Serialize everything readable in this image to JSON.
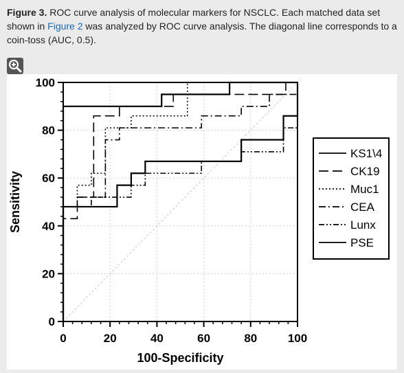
{
  "caption": {
    "label": "Figure 3.",
    "text_1": " ROC curve analysis of molecular markers for NSCLC. Each matched data set shown in ",
    "link": "Figure 2",
    "text_2": " was analyzed by ROC curve analysis. The diagonal line corresponds to a coin-toss (AUC, 0.5)."
  },
  "zoom_icon": "zoom-in-icon",
  "chart_data": {
    "type": "line",
    "title": "",
    "xlabel": "100-Specificity",
    "ylabel": "Sensitivity",
    "xlim": [
      0,
      100
    ],
    "ylim": [
      0,
      100
    ],
    "xticks": [
      "0",
      "20",
      "40",
      "60",
      "80",
      "100"
    ],
    "yticks": [
      "0",
      "20",
      "40",
      "60",
      "80",
      "100"
    ],
    "grid": true,
    "legend_position": "right",
    "series": [
      {
        "name": "KS1\\4",
        "dash": "solid",
        "x": [
          0,
          0,
          42,
          42,
          71,
          71,
          100,
          100
        ],
        "y": [
          0,
          90,
          90,
          95,
          95,
          100,
          100,
          100
        ]
      },
      {
        "name": "CK19",
        "dash": "long-dash",
        "x": [
          0,
          0,
          6,
          6,
          13,
          13,
          24,
          24,
          47,
          47,
          95,
          95,
          100
        ],
        "y": [
          0,
          43,
          43,
          52,
          52,
          86,
          86,
          90,
          90,
          95,
          95,
          100,
          100
        ]
      },
      {
        "name": "Muc1",
        "dash": "dotted",
        "x": [
          0,
          0,
          6,
          6,
          12,
          12,
          18,
          18,
          29,
          29,
          53,
          53,
          100
        ],
        "y": [
          0,
          48,
          48,
          57,
          57,
          62,
          62,
          81,
          81,
          86,
          86,
          100,
          100
        ]
      },
      {
        "name": "CEA",
        "dash": "dash-dot",
        "x": [
          0,
          0,
          6,
          6,
          18,
          18,
          24,
          24,
          59,
          59,
          76,
          76,
          88,
          88,
          100
        ],
        "y": [
          0,
          48,
          48,
          52,
          52,
          76,
          76,
          81,
          81,
          86,
          86,
          90,
          90,
          95,
          95
        ]
      },
      {
        "name": "Lunx",
        "dash": "dash-dot-dot",
        "x": [
          0,
          0,
          12,
          12,
          29,
          29,
          35,
          35,
          59,
          59,
          76,
          76,
          94,
          94,
          100,
          100
        ],
        "y": [
          0,
          48,
          48,
          52,
          52,
          57,
          57,
          62,
          62,
          67,
          67,
          71,
          71,
          81,
          81,
          100
        ]
      },
      {
        "name": "PSE",
        "dash": "solid",
        "x": [
          0,
          0,
          23,
          23,
          29,
          29,
          35,
          35,
          76,
          76,
          94,
          94,
          100,
          100
        ],
        "y": [
          0,
          48,
          48,
          57,
          57,
          62,
          62,
          67,
          67,
          76,
          76,
          86,
          86,
          100
        ]
      }
    ],
    "reference_line": {
      "x": [
        0,
        100
      ],
      "y": [
        0,
        100
      ]
    }
  }
}
